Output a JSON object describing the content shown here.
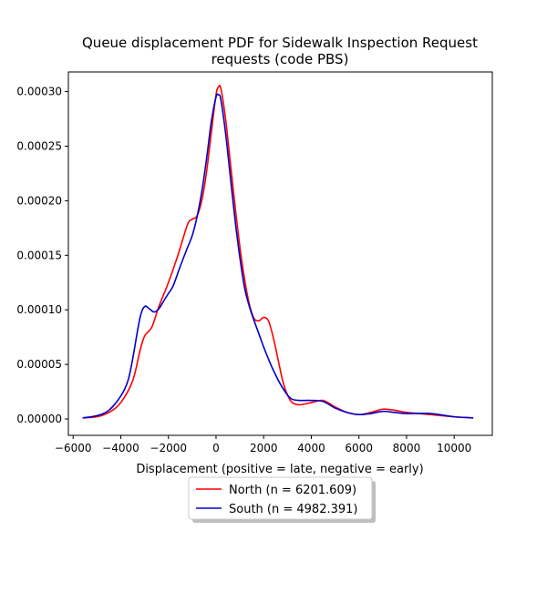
{
  "chart_data": {
    "type": "line",
    "title_lines": [
      "Queue displacement PDF for Sidewalk Inspection Request",
      "requests (code PBS)"
    ],
    "xlabel": "Displacement (positive = late, negative = early)",
    "ylabel": "",
    "xlim": [
      -6200,
      11600
    ],
    "ylim": [
      -1.5e-05,
      0.000318
    ],
    "x_ticks": [
      -6000,
      -4000,
      -2000,
      0,
      2000,
      4000,
      6000,
      8000,
      10000
    ],
    "x_tick_labels": [
      "−6000",
      "−4000",
      "−2000",
      "0",
      "2000",
      "4000",
      "6000",
      "8000",
      "10000"
    ],
    "y_ticks": [
      0,
      5e-05,
      0.0001,
      0.00015,
      0.0002,
      0.00025,
      0.0003
    ],
    "y_tick_labels": [
      "0.00000",
      "0.00005",
      "0.00010",
      "0.00015",
      "0.00020",
      "0.00025",
      "0.00030"
    ],
    "legend_position": "bottom-center, below axes",
    "grid": false,
    "series": [
      {
        "name": "North (n = 6201.609)",
        "color": "#ff0000",
        "x": [
          -5600,
          -5000,
          -4500,
          -4000,
          -3500,
          -3200,
          -3000,
          -2700,
          -2400,
          -2000,
          -1600,
          -1200,
          -1000,
          -800,
          -600,
          -400,
          -200,
          0,
          100,
          200,
          400,
          600,
          800,
          1000,
          1200,
          1400,
          1600,
          1800,
          2000,
          2200,
          2400,
          2600,
          2800,
          3000,
          3200,
          3500,
          4000,
          4500,
          5000,
          5500,
          6000,
          6500,
          7000,
          7500,
          8000,
          9000,
          10000,
          10800
        ],
        "y": [
          1e-06,
          2e-06,
          6e-06,
          1.5e-05,
          3.5e-05,
          6.2e-05,
          7.6e-05,
          8.4e-05,
          0.000103,
          0.000125,
          0.00015,
          0.000178,
          0.000183,
          0.000186,
          0.0002,
          0.000226,
          0.000262,
          0.000297,
          0.000304,
          0.000303,
          0.000275,
          0.000235,
          0.000195,
          0.000158,
          0.000128,
          0.000105,
          9.2e-05,
          9e-05,
          9.3e-05,
          9e-05,
          7.5e-05,
          5.5e-05,
          3.5e-05,
          2.2e-05,
          1.5e-05,
          1.3e-05,
          1.5e-05,
          1.7e-05,
          1.1e-05,
          6e-06,
          4e-06,
          6e-06,
          9e-06,
          8e-06,
          6e-06,
          4e-06,
          2e-06,
          1e-06
        ]
      },
      {
        "name": "South (n = 4982.391)",
        "color": "#0000cd",
        "x": [
          -5600,
          -5000,
          -4500,
          -4000,
          -3700,
          -3500,
          -3200,
          -3000,
          -2800,
          -2600,
          -2400,
          -2200,
          -2000,
          -1800,
          -1500,
          -1200,
          -1000,
          -800,
          -600,
          -400,
          -200,
          0,
          100,
          200,
          400,
          600,
          800,
          1000,
          1200,
          1400,
          1600,
          1800,
          2000,
          2200,
          2400,
          2700,
          3000,
          3200,
          3500,
          4000,
          4500,
          5000,
          5500,
          6000,
          6500,
          7000,
          7500,
          8000,
          9000,
          10000,
          10800
        ],
        "y": [
          1e-06,
          3e-06,
          8e-06,
          2.1e-05,
          3.5e-05,
          5.5e-05,
          9.2e-05,
          0.000103,
          0.000101,
          9.8e-05,
          0.000101,
          0.000108,
          0.000115,
          0.000122,
          0.00014,
          0.000157,
          0.000168,
          0.000185,
          0.000208,
          0.000238,
          0.000272,
          0.000295,
          0.000297,
          0.000293,
          0.000262,
          0.000222,
          0.000182,
          0.000148,
          0.00012,
          0.000103,
          9e-05,
          7.8e-05,
          6.6e-05,
          5.5e-05,
          4.5e-05,
          3.2e-05,
          2.2e-05,
          1.8e-05,
          1.7e-05,
          1.7e-05,
          1.6e-05,
          1e-05,
          6e-06,
          4e-06,
          5e-06,
          7e-06,
          6e-06,
          5e-06,
          5e-06,
          2e-06,
          1e-06
        ]
      }
    ]
  }
}
